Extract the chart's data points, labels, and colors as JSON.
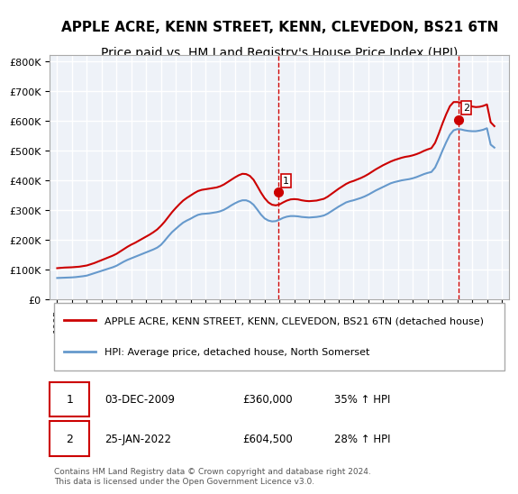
{
  "title": "APPLE ACRE, KENN STREET, KENN, CLEVEDON, BS21 6TN",
  "subtitle": "Price paid vs. HM Land Registry's House Price Index (HPI)",
  "title_fontsize": 11,
  "subtitle_fontsize": 10,
  "background_color": "#ffffff",
  "plot_bg_color": "#eef2f8",
  "grid_color": "#ffffff",
  "legend_entry1": "APPLE ACRE, KENN STREET, KENN, CLEVEDON, BS21 6TN (detached house)",
  "legend_entry2": "HPI: Average price, detached house, North Somerset",
  "line1_color": "#cc0000",
  "line2_color": "#6699cc",
  "marker1_label": "1",
  "marker2_label": "2",
  "marker1_x": 2009.92,
  "marker1_y": 360000,
  "marker2_x": 2022.07,
  "marker2_y": 604500,
  "vline1_x": 2009.92,
  "vline2_x": 2022.07,
  "vline_color": "#cc0000",
  "table_row1": [
    "1",
    "03-DEC-2009",
    "£360,000",
    "35% ↑ HPI"
  ],
  "table_row2": [
    "2",
    "25-JAN-2022",
    "£604,500",
    "28% ↑ HPI"
  ],
  "footnote": "Contains HM Land Registry data © Crown copyright and database right 2024.\nThis data is licensed under the Open Government Licence v3.0.",
  "ylim": [
    0,
    820000
  ],
  "xlim": [
    1994.5,
    2025.5
  ],
  "yticks": [
    0,
    100000,
    200000,
    300000,
    400000,
    500000,
    600000,
    700000,
    800000
  ],
  "xticks": [
    1995,
    1996,
    1997,
    1998,
    1999,
    2000,
    2001,
    2002,
    2003,
    2004,
    2005,
    2006,
    2007,
    2008,
    2009,
    2010,
    2011,
    2012,
    2013,
    2014,
    2015,
    2016,
    2017,
    2018,
    2019,
    2020,
    2021,
    2022,
    2023,
    2024,
    2025
  ],
  "hpi_data_x": [
    1995.0,
    1995.25,
    1995.5,
    1995.75,
    1996.0,
    1996.25,
    1996.5,
    1996.75,
    1997.0,
    1997.25,
    1997.5,
    1997.75,
    1998.0,
    1998.25,
    1998.5,
    1998.75,
    1999.0,
    1999.25,
    1999.5,
    1999.75,
    2000.0,
    2000.25,
    2000.5,
    2000.75,
    2001.0,
    2001.25,
    2001.5,
    2001.75,
    2002.0,
    2002.25,
    2002.5,
    2002.75,
    2003.0,
    2003.25,
    2003.5,
    2003.75,
    2004.0,
    2004.25,
    2004.5,
    2004.75,
    2005.0,
    2005.25,
    2005.5,
    2005.75,
    2006.0,
    2006.25,
    2006.5,
    2006.75,
    2007.0,
    2007.25,
    2007.5,
    2007.75,
    2008.0,
    2008.25,
    2008.5,
    2008.75,
    2009.0,
    2009.25,
    2009.5,
    2009.75,
    2010.0,
    2010.25,
    2010.5,
    2010.75,
    2011.0,
    2011.25,
    2011.5,
    2011.75,
    2012.0,
    2012.25,
    2012.5,
    2012.75,
    2013.0,
    2013.25,
    2013.5,
    2013.75,
    2014.0,
    2014.25,
    2014.5,
    2014.75,
    2015.0,
    2015.25,
    2015.5,
    2015.75,
    2016.0,
    2016.25,
    2016.5,
    2016.75,
    2017.0,
    2017.25,
    2017.5,
    2017.75,
    2018.0,
    2018.25,
    2018.5,
    2018.75,
    2019.0,
    2019.25,
    2019.5,
    2019.75,
    2020.0,
    2020.25,
    2020.5,
    2020.75,
    2021.0,
    2021.25,
    2021.5,
    2021.75,
    2022.0,
    2022.25,
    2022.5,
    2022.75,
    2023.0,
    2023.25,
    2023.5,
    2023.75,
    2024.0,
    2024.25,
    2024.5
  ],
  "hpi_data_y": [
    72000,
    72500,
    73000,
    73500,
    74000,
    75000,
    76500,
    78000,
    80000,
    84000,
    88000,
    92000,
    96000,
    100000,
    104000,
    108000,
    113000,
    120000,
    127000,
    133000,
    138000,
    143000,
    148000,
    153000,
    158000,
    163000,
    168000,
    174000,
    183000,
    197000,
    212000,
    226000,
    237000,
    248000,
    258000,
    265000,
    271000,
    278000,
    284000,
    287000,
    288000,
    289000,
    291000,
    293000,
    296000,
    301000,
    308000,
    316000,
    323000,
    329000,
    333000,
    333000,
    328000,
    318000,
    302000,
    285000,
    272000,
    265000,
    262000,
    263000,
    268000,
    274000,
    278000,
    280000,
    280000,
    279000,
    277000,
    276000,
    275000,
    276000,
    277000,
    279000,
    282000,
    288000,
    296000,
    304000,
    312000,
    319000,
    326000,
    330000,
    333000,
    337000,
    341000,
    346000,
    352000,
    359000,
    366000,
    372000,
    378000,
    384000,
    390000,
    394000,
    397000,
    400000,
    402000,
    404000,
    407000,
    411000,
    416000,
    421000,
    425000,
    428000,
    443000,
    470000,
    500000,
    528000,
    553000,
    568000,
    572000,
    571000,
    568000,
    566000,
    565000,
    565000,
    567000,
    570000,
    575000,
    520000,
    510000
  ],
  "price_data_x": [
    1995.0,
    1995.25,
    1995.5,
    1995.75,
    1996.0,
    1996.25,
    1996.5,
    1996.75,
    1997.0,
    1997.25,
    1997.5,
    1997.75,
    1998.0,
    1998.25,
    1998.5,
    1998.75,
    1999.0,
    1999.25,
    1999.5,
    1999.75,
    2000.0,
    2000.25,
    2000.5,
    2000.75,
    2001.0,
    2001.25,
    2001.5,
    2001.75,
    2002.0,
    2002.25,
    2002.5,
    2002.75,
    2003.0,
    2003.25,
    2003.5,
    2003.75,
    2004.0,
    2004.25,
    2004.5,
    2004.75,
    2005.0,
    2005.25,
    2005.5,
    2005.75,
    2006.0,
    2006.25,
    2006.5,
    2006.75,
    2007.0,
    2007.25,
    2007.5,
    2007.75,
    2008.0,
    2008.25,
    2008.5,
    2008.75,
    2009.0,
    2009.25,
    2009.5,
    2009.75,
    2010.0,
    2010.25,
    2010.5,
    2010.75,
    2011.0,
    2011.25,
    2011.5,
    2011.75,
    2012.0,
    2012.25,
    2012.5,
    2012.75,
    2013.0,
    2013.25,
    2013.5,
    2013.75,
    2014.0,
    2014.25,
    2014.5,
    2014.75,
    2015.0,
    2015.25,
    2015.5,
    2015.75,
    2016.0,
    2016.25,
    2016.5,
    2016.75,
    2017.0,
    2017.25,
    2017.5,
    2017.75,
    2018.0,
    2018.25,
    2018.5,
    2018.75,
    2019.0,
    2019.25,
    2019.5,
    2019.75,
    2020.0,
    2020.25,
    2020.5,
    2020.75,
    2021.0,
    2021.25,
    2021.5,
    2021.75,
    2022.0,
    2022.25,
    2022.5,
    2022.75,
    2023.0,
    2023.25,
    2023.5,
    2023.75,
    2024.0,
    2024.25,
    2024.5
  ],
  "price_data_y": [
    105000,
    106000,
    107000,
    107500,
    108000,
    109000,
    110000,
    112000,
    114000,
    118000,
    122000,
    127000,
    132000,
    137000,
    142000,
    147000,
    153000,
    161000,
    169000,
    177000,
    184000,
    190000,
    197000,
    204000,
    211000,
    218000,
    226000,
    235000,
    247000,
    261000,
    277000,
    293000,
    307000,
    320000,
    332000,
    341000,
    349000,
    357000,
    364000,
    368000,
    370000,
    372000,
    374000,
    376000,
    380000,
    386000,
    394000,
    402000,
    410000,
    417000,
    422000,
    421000,
    415000,
    402000,
    381000,
    359000,
    340000,
    326000,
    318000,
    316000,
    319000,
    326000,
    332000,
    336000,
    337000,
    336000,
    333000,
    331000,
    330000,
    331000,
    332000,
    335000,
    338000,
    345000,
    354000,
    363000,
    372000,
    380000,
    388000,
    394000,
    398000,
    403000,
    408000,
    414000,
    421000,
    429000,
    437000,
    444000,
    451000,
    457000,
    463000,
    468000,
    472000,
    476000,
    479000,
    481000,
    484000,
    488000,
    493000,
    499000,
    504000,
    508000,
    526000,
    557000,
    591000,
    622000,
    649000,
    663000,
    663000,
    661000,
    656000,
    652000,
    648000,
    646000,
    647000,
    650000,
    655000,
    595000,
    582000
  ]
}
